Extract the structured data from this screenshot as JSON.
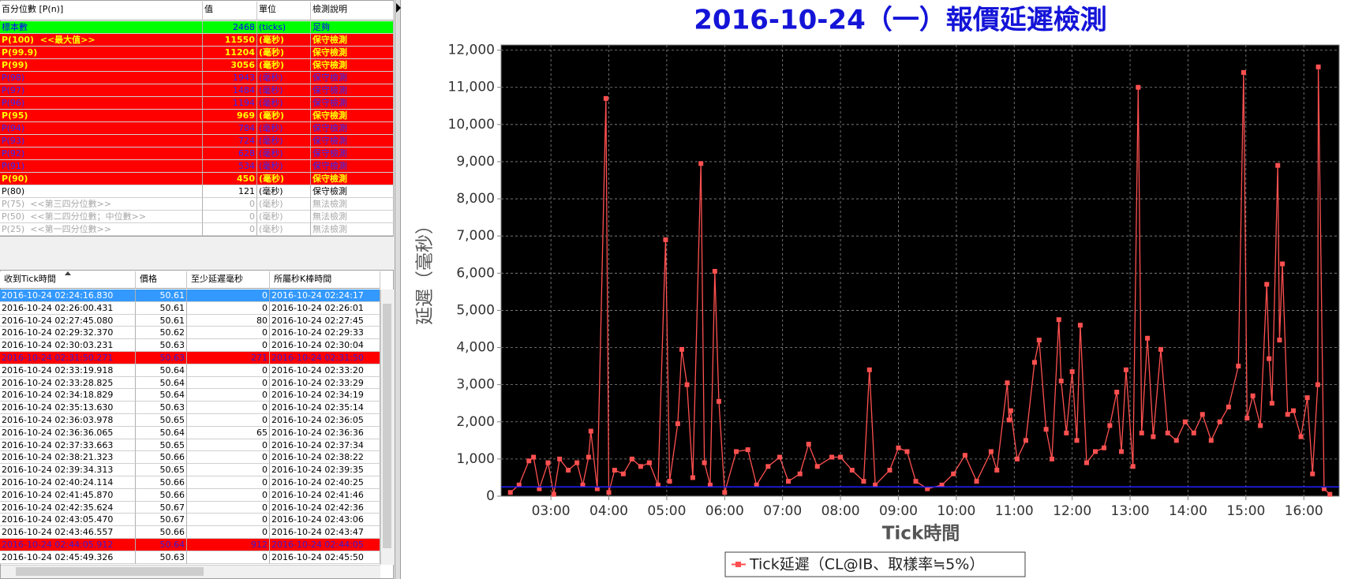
{
  "percentile_table": {
    "header": [
      "百分位數 [P(n)]",
      "值",
      "單位",
      "檢測說明"
    ],
    "rows": [
      {
        "cells": [
          "標本數",
          "2468",
          "(ticks)",
          "足夠"
        ],
        "bg": "#00ff00",
        "color": "#0000ff",
        "bold": false
      },
      {
        "cells": [
          "P(100)  <<最大值>>",
          "11550",
          "(毫秒)",
          "保守檢測"
        ],
        "bg": "#ff0000",
        "color": "#ffff00",
        "bold": true
      },
      {
        "cells": [
          "P(99.9)",
          "11204",
          "(毫秒)",
          "保守檢測"
        ],
        "bg": "#ff0000",
        "color": "#ffff00",
        "bold": true
      },
      {
        "cells": [
          "P(99)",
          "3056",
          "(毫秒)",
          "保守檢測"
        ],
        "bg": "#ff0000",
        "color": "#ffff00",
        "bold": true
      },
      {
        "cells": [
          "P(98)",
          "1943",
          "(毫秒)",
          "保守檢測"
        ],
        "bg": "#ff0000",
        "color": "#2a2aff",
        "bold": false
      },
      {
        "cells": [
          "P(97)",
          "1484",
          "(毫秒)",
          "保守檢測"
        ],
        "bg": "#ff0000",
        "color": "#2a2aff",
        "bold": false
      },
      {
        "cells": [
          "P(96)",
          "1194",
          "(毫秒)",
          "保守檢測"
        ],
        "bg": "#ff0000",
        "color": "#2a2aff",
        "bold": false
      },
      {
        "cells": [
          "P(95)",
          "969",
          "(毫秒)",
          "保守檢測"
        ],
        "bg": "#ff0000",
        "color": "#ffff00",
        "bold": true
      },
      {
        "cells": [
          "P(94)",
          "784",
          "(毫秒)",
          "保守檢測"
        ],
        "bg": "#ff0000",
        "color": "#2a2aff",
        "bold": false
      },
      {
        "cells": [
          "P(93)",
          "724",
          "(毫秒)",
          "保守檢測"
        ],
        "bg": "#ff0000",
        "color": "#2a2aff",
        "bold": false
      },
      {
        "cells": [
          "P(92)",
          "628",
          "(毫秒)",
          "保守檢測"
        ],
        "bg": "#ff0000",
        "color": "#2a2aff",
        "bold": false
      },
      {
        "cells": [
          "P(91)",
          "534",
          "(毫秒)",
          "保守檢測"
        ],
        "bg": "#ff0000",
        "color": "#2a2aff",
        "bold": false
      },
      {
        "cells": [
          "P(90)",
          "450",
          "(毫秒)",
          "保守檢測"
        ],
        "bg": "#ff0000",
        "color": "#ffff00",
        "bold": true
      },
      {
        "cells": [
          "P(80)",
          "121",
          "(毫秒)",
          "保守檢測"
        ],
        "bg": "#ffffff",
        "color": "#000000",
        "bold": false
      },
      {
        "cells": [
          "P(75)  <<第三四分位數>>",
          "0",
          "(毫秒)",
          "無法檢測"
        ],
        "bg": "#ffffff",
        "color": "#a8a8a8",
        "bold": false
      },
      {
        "cells": [
          "P(50)  <<第二四分位數；中位數>>",
          "0",
          "(毫秒)",
          "無法檢測"
        ],
        "bg": "#ffffff",
        "color": "#a8a8a8",
        "bold": false
      },
      {
        "cells": [
          "P(25)  <<第一四分位數>>",
          "0",
          "(毫秒)",
          "無法檢測"
        ],
        "bg": "#ffffff",
        "color": "#a8a8a8",
        "bold": false
      }
    ]
  },
  "tick_table": {
    "header": [
      "收到Tick時間",
      "價格",
      "至少延遲毫秒",
      "所屬秒K棒時間"
    ],
    "rows": [
      {
        "cells": [
          "2016-10-24 02:24:16.830",
          "50.61",
          "0",
          "2016-10-24 02:24:17"
        ],
        "bg": "#3399ff",
        "color": "#ffffff"
      },
      {
        "cells": [
          "2016-10-24 02:26:00.431",
          "50.61",
          "0",
          "2016-10-24 02:26:01"
        ],
        "bg": "#ffffff",
        "color": "#000000"
      },
      {
        "cells": [
          "2016-10-24 02:27:45.080",
          "50.61",
          "80",
          "2016-10-24 02:27:45"
        ],
        "bg": "#ffffff",
        "color": "#000000"
      },
      {
        "cells": [
          "2016-10-24 02:29:32.370",
          "50.62",
          "0",
          "2016-10-24 02:29:33"
        ],
        "bg": "#ffffff",
        "color": "#000000"
      },
      {
        "cells": [
          "2016-10-24 02:30:03.231",
          "50.63",
          "0",
          "2016-10-24 02:30:04"
        ],
        "bg": "#ffffff",
        "color": "#000000"
      },
      {
        "cells": [
          "2016-10-24 02:31:50.271",
          "50.63",
          "271",
          "2016-10-24 02:31:50"
        ],
        "bg": "#ff0000",
        "color": "#3a1ad0"
      },
      {
        "cells": [
          "2016-10-24 02:33:19.918",
          "50.64",
          "0",
          "2016-10-24 02:33:20"
        ],
        "bg": "#ffffff",
        "color": "#000000"
      },
      {
        "cells": [
          "2016-10-24 02:33:28.825",
          "50.64",
          "0",
          "2016-10-24 02:33:29"
        ],
        "bg": "#ffffff",
        "color": "#000000"
      },
      {
        "cells": [
          "2016-10-24 02:34:18.829",
          "50.64",
          "0",
          "2016-10-24 02:34:19"
        ],
        "bg": "#ffffff",
        "color": "#000000"
      },
      {
        "cells": [
          "2016-10-24 02:35:13.630",
          "50.63",
          "0",
          "2016-10-24 02:35:14"
        ],
        "bg": "#ffffff",
        "color": "#000000"
      },
      {
        "cells": [
          "2016-10-24 02:36:03.978",
          "50.65",
          "0",
          "2016-10-24 02:36:05"
        ],
        "bg": "#ffffff",
        "color": "#000000"
      },
      {
        "cells": [
          "2016-10-24 02:36:36.065",
          "50.64",
          "65",
          "2016-10-24 02:36:36"
        ],
        "bg": "#ffffff",
        "color": "#000000"
      },
      {
        "cells": [
          "2016-10-24 02:37:33.663",
          "50.65",
          "0",
          "2016-10-24 02:37:34"
        ],
        "bg": "#ffffff",
        "color": "#000000"
      },
      {
        "cells": [
          "2016-10-24 02:38:21.323",
          "50.66",
          "0",
          "2016-10-24 02:38:22"
        ],
        "bg": "#ffffff",
        "color": "#000000"
      },
      {
        "cells": [
          "2016-10-24 02:39:34.313",
          "50.65",
          "0",
          "2016-10-24 02:39:35"
        ],
        "bg": "#ffffff",
        "color": "#000000"
      },
      {
        "cells": [
          "2016-10-24 02:40:24.114",
          "50.66",
          "0",
          "2016-10-24 02:40:25"
        ],
        "bg": "#ffffff",
        "color": "#000000"
      },
      {
        "cells": [
          "2016-10-24 02:41:45.870",
          "50.66",
          "0",
          "2016-10-24 02:41:46"
        ],
        "bg": "#ffffff",
        "color": "#000000"
      },
      {
        "cells": [
          "2016-10-24 02:42:35.624",
          "50.67",
          "0",
          "2016-10-24 02:42:36"
        ],
        "bg": "#ffffff",
        "color": "#000000"
      },
      {
        "cells": [
          "2016-10-24 02:43:05.470",
          "50.67",
          "0",
          "2016-10-24 02:43:06"
        ],
        "bg": "#ffffff",
        "color": "#000000"
      },
      {
        "cells": [
          "2016-10-24 02:43:46.557",
          "50.66",
          "0",
          "2016-10-24 02:43:47"
        ],
        "bg": "#ffffff",
        "color": "#000000"
      },
      {
        "cells": [
          "2016-10-24 02:44:05.912",
          "50.64",
          "912",
          "2016-10-24 02:44:05"
        ],
        "bg": "#ff0000",
        "color": "#3a1ad0"
      },
      {
        "cells": [
          "2016-10-24 02:45:49.326",
          "50.63",
          "0",
          "2016-10-24 02:45:50"
        ],
        "bg": "#ffffff",
        "color": "#000000"
      }
    ]
  },
  "chart": {
    "type": "line",
    "title": "2016-10-24（一）報價延遲檢測",
    "x_label": "Tick時間",
    "y_label": "延遲（毫秒）",
    "xlim": [
      2.14,
      16.61
    ],
    "ylim": [
      0,
      12140
    ],
    "xticks": [
      {
        "value": 3,
        "label": "03:00"
      },
      {
        "value": 4,
        "label": "04:00"
      },
      {
        "value": 5,
        "label": "05:00"
      },
      {
        "value": 6,
        "label": "06:00"
      },
      {
        "value": 7,
        "label": "07:00"
      },
      {
        "value": 8,
        "label": "08:00"
      },
      {
        "value": 9,
        "label": "09:00"
      },
      {
        "value": 10,
        "label": "10:00"
      },
      {
        "value": 11,
        "label": "11:00"
      },
      {
        "value": 12,
        "label": "12:00"
      },
      {
        "value": 13,
        "label": "13:00"
      },
      {
        "value": 14,
        "label": "14:00"
      },
      {
        "value": 15,
        "label": "15:00"
      },
      {
        "value": 16,
        "label": "16:00"
      }
    ],
    "yticks": [
      0,
      {
        "value": 1000,
        "label": "1,000"
      },
      {
        "value": 2000,
        "label": "2,000"
      },
      {
        "value": 3000,
        "label": "3,000"
      },
      {
        "value": 4000,
        "label": "4,000"
      },
      {
        "value": 5000,
        "label": "5,000"
      },
      {
        "value": 6000,
        "label": "6,000"
      },
      {
        "value": 7000,
        "label": "7,000"
      },
      {
        "value": 8000,
        "label": "8,000"
      },
      {
        "value": 9000,
        "label": "9,000"
      },
      {
        "value": 10000,
        "label": "10,000"
      },
      {
        "value": 11000,
        "label": "11,000"
      },
      {
        "value": 12000,
        "label": "12,000"
      }
    ],
    "grid": true,
    "x": [
      2.3,
      2.45,
      2.62,
      2.7,
      2.8,
      2.95,
      3.05,
      3.15,
      3.3,
      3.45,
      3.55,
      3.65,
      3.69,
      3.8,
      3.95,
      4.0,
      4.1,
      4.25,
      4.4,
      4.55,
      4.7,
      4.85,
      4.98,
      5.05,
      5.19,
      5.26,
      5.35,
      5.45,
      5.59,
      5.65,
      5.75,
      5.83,
      5.9,
      6.0,
      6.2,
      6.4,
      6.55,
      6.75,
      6.95,
      7.1,
      7.3,
      7.45,
      7.6,
      7.85,
      8.0,
      8.2,
      8.4,
      8.5,
      8.6,
      8.85,
      9.0,
      9.15,
      9.3,
      9.5,
      9.75,
      9.95,
      10.15,
      10.35,
      10.6,
      10.7,
      10.88,
      10.91,
      10.94,
      11.05,
      11.2,
      11.35,
      11.43,
      11.55,
      11.65,
      11.77,
      11.81,
      11.9,
      12.0,
      12.08,
      12.14,
      12.25,
      12.4,
      12.55,
      12.65,
      12.77,
      12.85,
      12.93,
      13.05,
      13.14,
      13.2,
      13.3,
      13.4,
      13.53,
      13.65,
      13.8,
      13.95,
      14.1,
      14.25,
      14.4,
      14.55,
      14.7,
      14.87,
      14.96,
      15.02,
      15.12,
      15.25,
      15.36,
      15.4,
      15.45,
      15.55,
      15.58,
      15.63,
      15.72,
      15.82,
      15.95,
      16.06,
      16.15,
      16.24,
      16.25,
      16.35,
      16.45
    ],
    "series": [
      {
        "name": "Tick延遲（CL@IB、取樣率≒5%）",
        "color": "#ff5050",
        "values": [
          100,
          300,
          950,
          1050,
          200,
          900,
          50,
          1000,
          700,
          900,
          300,
          1050,
          1750,
          200,
          10700,
          100,
          700,
          600,
          1000,
          800,
          900,
          300,
          6900,
          400,
          1950,
          3950,
          3000,
          500,
          8950,
          900,
          300,
          6050,
          2550,
          100,
          1200,
          1250,
          300,
          800,
          1050,
          400,
          600,
          1400,
          800,
          1050,
          1050,
          700,
          400,
          3400,
          300,
          700,
          1300,
          1200,
          400,
          200,
          300,
          600,
          1100,
          400,
          1200,
          700,
          3050,
          2050,
          2300,
          1000,
          1500,
          3600,
          4200,
          1800,
          1000,
          4750,
          3100,
          1700,
          3350,
          1500,
          4600,
          900,
          1200,
          1300,
          1900,
          2800,
          1200,
          3400,
          800,
          11000,
          1700,
          4250,
          1600,
          3950,
          1700,
          1500,
          2000,
          1700,
          2200,
          1500,
          2000,
          2400,
          3500,
          11400,
          2100,
          2700,
          1900,
          5700,
          3700,
          2500,
          8900,
          4200,
          6250,
          2200,
          2300,
          1600,
          2650,
          600,
          3000,
          11550,
          200,
          50
        ]
      }
    ],
    "reference_line": {
      "value": 250,
      "color": "#2020ff"
    }
  }
}
